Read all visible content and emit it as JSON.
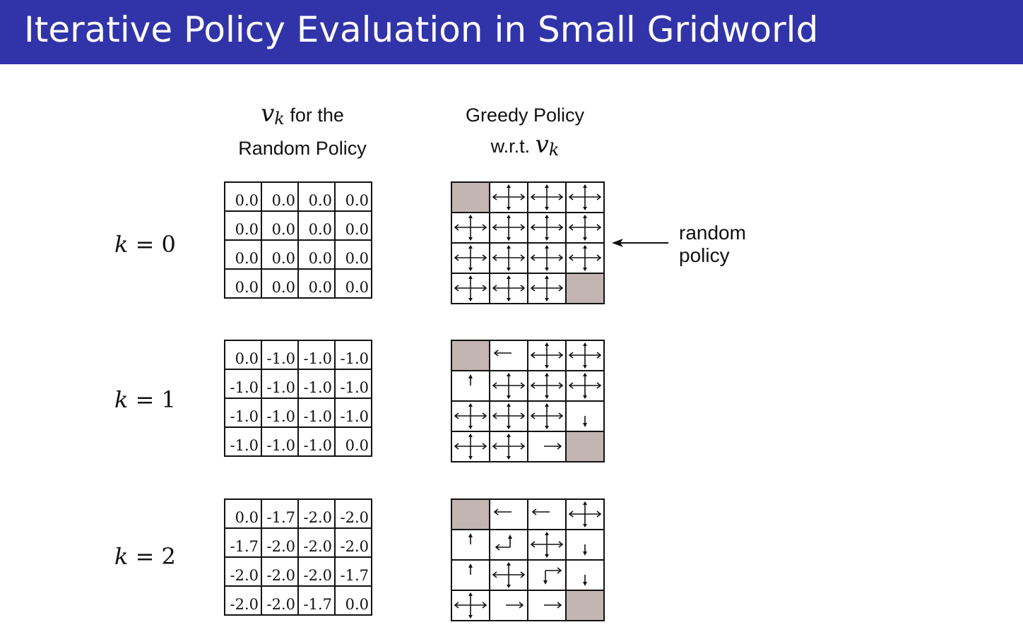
{
  "title": "Iterative Policy Evaluation in Small Gridworld",
  "header_values": {
    "line1_math": "v",
    "line1_sub": "k",
    "line1_text": "for the",
    "line2_text": "Random Policy"
  },
  "header_policy": {
    "line1_text": "Greedy Policy",
    "line2_text": "w.r.t.",
    "line2_math": "v",
    "line2_sub": "k"
  },
  "annotation": {
    "line1": "random",
    "line2": "policy"
  },
  "rows": [
    {
      "k_var": "k",
      "k_eq": " = ",
      "k_val": "0",
      "values": [
        [
          "0.0",
          "0.0",
          "0.0",
          "0.0"
        ],
        [
          "0.0",
          "0.0",
          "0.0",
          "0.0"
        ],
        [
          "0.0",
          "0.0",
          "0.0",
          "0.0"
        ],
        [
          "0.0",
          "0.0",
          "0.0",
          "0.0"
        ]
      ],
      "policy": [
        [
          "T",
          "NESW",
          "NESW",
          "NESW"
        ],
        [
          "NESW",
          "NESW",
          "NESW",
          "NESW"
        ],
        [
          "NESW",
          "NESW",
          "NESW",
          "NESW"
        ],
        [
          "NESW",
          "NESW",
          "NESW",
          "T"
        ]
      ]
    },
    {
      "k_var": "k",
      "k_eq": " = ",
      "k_val": "1",
      "values": [
        [
          "0.0",
          "-1.0",
          "-1.0",
          "-1.0"
        ],
        [
          "-1.0",
          "-1.0",
          "-1.0",
          "-1.0"
        ],
        [
          "-1.0",
          "-1.0",
          "-1.0",
          "-1.0"
        ],
        [
          "-1.0",
          "-1.0",
          "-1.0",
          "0.0"
        ]
      ],
      "policy": [
        [
          "T",
          "W",
          "NESW",
          "NESW"
        ],
        [
          "N",
          "NESW",
          "NESW",
          "NESW"
        ],
        [
          "NESW",
          "NESW",
          "NESW",
          "S"
        ],
        [
          "NESW",
          "NESW",
          "E",
          "T"
        ]
      ]
    },
    {
      "k_var": "k",
      "k_eq": " = ",
      "k_val": "2",
      "values": [
        [
          "0.0",
          "-1.7",
          "-2.0",
          "-2.0"
        ],
        [
          "-1.7",
          "-2.0",
          "-2.0",
          "-2.0"
        ],
        [
          "-2.0",
          "-2.0",
          "-2.0",
          "-1.7"
        ],
        [
          "-2.0",
          "-2.0",
          "-1.7",
          "0.0"
        ]
      ],
      "policy": [
        [
          "T",
          "W",
          "W",
          "NESW"
        ],
        [
          "N",
          "NW",
          "NESW",
          "S"
        ],
        [
          "N",
          "NESW",
          "ES",
          "S"
        ],
        [
          "NESW",
          "E",
          "E",
          "T"
        ]
      ]
    }
  ]
}
